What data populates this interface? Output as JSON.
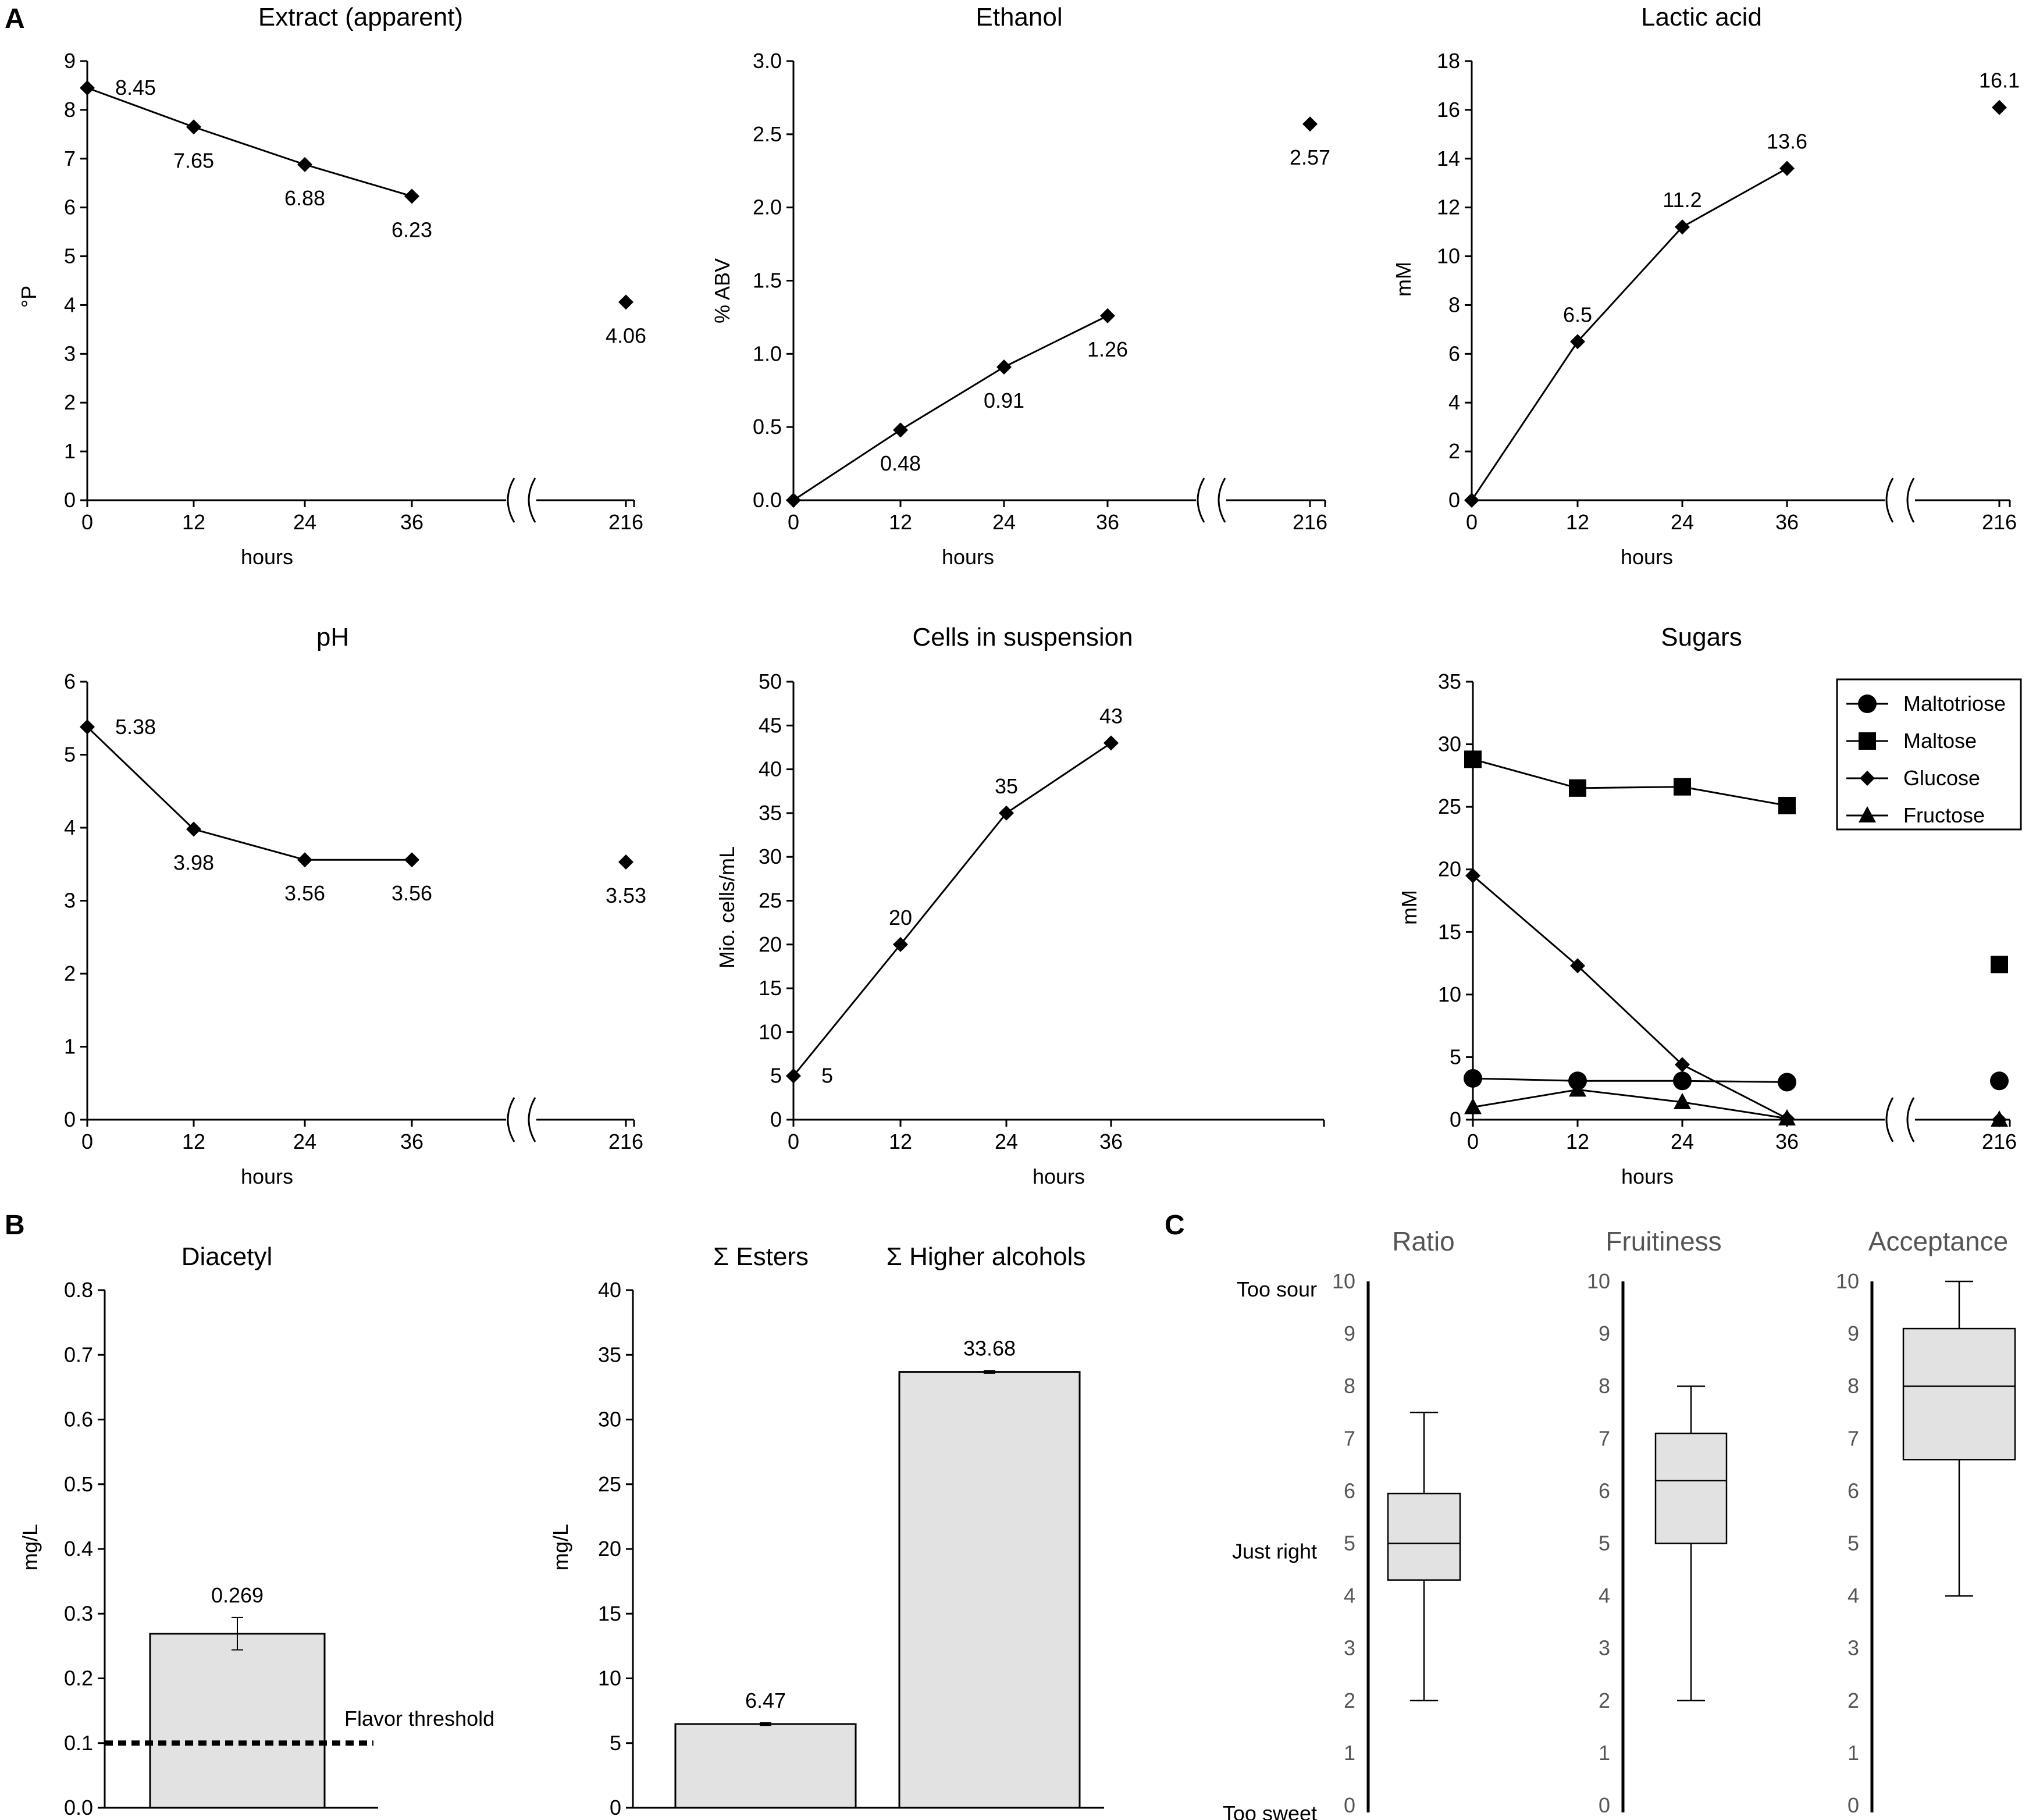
{
  "panel_labels": [
    "A",
    "B",
    "C"
  ],
  "chart_data": [
    {
      "id": "extract",
      "type": "line",
      "title": "Extract (apparent)",
      "xlabel": "hours",
      "ylabel": "°P",
      "ylim": [
        0,
        9
      ],
      "yticks": [
        0,
        1,
        2,
        3,
        4,
        5,
        6,
        7,
        8,
        9
      ],
      "x_ticks": [
        "0",
        "12",
        "24",
        "36",
        "216"
      ],
      "axis_break": true,
      "series": [
        {
          "name": "Extract",
          "marker": "diamond",
          "x": [
            0,
            12,
            24,
            36,
            216
          ],
          "values": [
            8.45,
            7.65,
            6.88,
            6.23,
            4.06
          ],
          "labels": [
            "8.45",
            "7.65",
            "6.88",
            "6.23",
            "4.06"
          ],
          "label_pos": [
            "right",
            "below",
            "below",
            "below",
            "below"
          ]
        }
      ]
    },
    {
      "id": "ethanol",
      "type": "line",
      "title": "Ethanol",
      "xlabel": "hours",
      "ylabel": "% ABV",
      "ylim": [
        0,
        3.0
      ],
      "yticks": [
        "0.0",
        "0.5",
        "1.0",
        "1.5",
        "2.0",
        "2.5",
        "3.0"
      ],
      "x_ticks": [
        "0",
        "12",
        "24",
        "36",
        "216"
      ],
      "axis_break": true,
      "series": [
        {
          "name": "Ethanol",
          "marker": "diamond",
          "x": [
            0,
            12,
            24,
            36,
            216
          ],
          "values": [
            0,
            0.48,
            0.91,
            1.26,
            2.57
          ],
          "labels": [
            "",
            "0.48",
            "0.91",
            "1.26",
            "2.57"
          ],
          "label_pos": [
            "none",
            "below",
            "below",
            "below",
            "below"
          ]
        }
      ]
    },
    {
      "id": "lactic",
      "type": "line",
      "title": "Lactic acid",
      "xlabel": "hours",
      "ylabel": "mM",
      "ylim": [
        0,
        18
      ],
      "yticks": [
        "0",
        "2",
        "4",
        "6",
        "8",
        "10",
        "12",
        "14",
        "16",
        "18"
      ],
      "x_ticks": [
        "0",
        "12",
        "24",
        "36",
        "216"
      ],
      "axis_break": true,
      "series": [
        {
          "name": "Lactic acid",
          "marker": "diamond",
          "x": [
            0,
            12,
            24,
            36,
            216
          ],
          "values": [
            0,
            6.5,
            11.2,
            13.6,
            16.1
          ],
          "labels": [
            "",
            "6.5",
            "11.2",
            "13.6",
            "16.1"
          ],
          "label_pos": [
            "none",
            "above",
            "above",
            "above",
            "above"
          ]
        }
      ]
    },
    {
      "id": "ph",
      "type": "line",
      "title": "pH",
      "xlabel": "hours",
      "ylabel": "",
      "ylim": [
        0,
        6
      ],
      "yticks": [
        "0",
        "1",
        "2",
        "3",
        "4",
        "5",
        "6"
      ],
      "x_ticks": [
        "0",
        "12",
        "24",
        "36",
        "216"
      ],
      "axis_break": true,
      "series": [
        {
          "name": "pH",
          "marker": "diamond",
          "x": [
            0,
            12,
            24,
            36,
            216
          ],
          "values": [
            5.38,
            3.98,
            3.56,
            3.56,
            3.53
          ],
          "labels": [
            "5.38",
            "3.98",
            "3.56",
            "3.56",
            "3.53"
          ],
          "label_pos": [
            "right",
            "below",
            "below",
            "below",
            "below"
          ]
        }
      ]
    },
    {
      "id": "cells",
      "type": "line",
      "title": "Cells in suspension",
      "xlabel": "hours",
      "ylabel": "Mio. cells/mL",
      "ylim": [
        0,
        50
      ],
      "yticks": [
        "0",
        "5",
        "10",
        "15",
        "20",
        "25",
        "30",
        "35",
        "40",
        "45",
        "50"
      ],
      "x_ticks": [
        "0",
        "12",
        "24",
        "36"
      ],
      "axis_break": false,
      "series": [
        {
          "name": "Cells",
          "marker": "diamond",
          "x": [
            0,
            12,
            24,
            36
          ],
          "values": [
            5,
            20,
            35,
            43
          ],
          "labels": [
            "5",
            "20",
            "35",
            "43"
          ],
          "label_pos": [
            "right",
            "above",
            "above",
            "above"
          ]
        }
      ]
    },
    {
      "id": "sugars",
      "type": "line",
      "title": "Sugars",
      "xlabel": "hours",
      "ylabel": "mM",
      "ylim": [
        0,
        35
      ],
      "yticks": [
        "0",
        "5",
        "10",
        "15",
        "20",
        "25",
        "30",
        "35"
      ],
      "x_ticks": [
        "0",
        "12",
        "24",
        "36",
        "216"
      ],
      "axis_break": true,
      "legend": "top-right",
      "series": [
        {
          "name": "Maltotriose",
          "marker": "circle",
          "x": [
            0,
            12,
            24,
            36,
            216
          ],
          "values": [
            3.3,
            3.1,
            3.1,
            3.0,
            3.1
          ]
        },
        {
          "name": "Maltose",
          "marker": "square",
          "x": [
            0,
            12,
            24,
            36,
            216
          ],
          "values": [
            28.8,
            26.5,
            26.6,
            25.1,
            12.4
          ]
        },
        {
          "name": "Glucose",
          "marker": "diamond",
          "x": [
            0,
            12,
            24,
            36,
            216
          ],
          "values": [
            19.5,
            12.3,
            4.4,
            0.1,
            0.0
          ]
        },
        {
          "name": "Fructose",
          "marker": "triangle",
          "x": [
            0,
            12,
            24,
            36,
            216
          ],
          "values": [
            1.0,
            2.4,
            1.4,
            0.1,
            0.0
          ]
        }
      ]
    },
    {
      "id": "diacetyl",
      "type": "bar",
      "title": "Diacetyl",
      "ylabel": "mg/L",
      "ylim": [
        0,
        0.8
      ],
      "yticks": [
        "0.0",
        "0.1",
        "0.2",
        "0.3",
        "0.4",
        "0.5",
        "0.6",
        "0.7",
        "0.8"
      ],
      "categories": [
        "Diacetyl"
      ],
      "values": [
        0.269
      ],
      "errors": [
        0.025
      ],
      "labels": [
        "0.269"
      ],
      "threshold": 0.1,
      "threshold_label": "Flavor threshold"
    },
    {
      "id": "esters",
      "type": "bar",
      "title": "",
      "ylabel": "mg/L",
      "ylim": [
        0,
        40
      ],
      "yticks": [
        "0",
        "5",
        "10",
        "15",
        "20",
        "25",
        "30",
        "35",
        "40"
      ],
      "categories": [
        "Σ Esters",
        "Σ Higher alcohols"
      ],
      "values": [
        6.47,
        33.68
      ],
      "errors": [
        0.1,
        0.1
      ],
      "labels": [
        "6.47",
        "33.68"
      ]
    },
    {
      "id": "sensory",
      "type": "boxplot",
      "ylim": [
        0,
        10
      ],
      "yticks": [
        "0",
        "1",
        "2",
        "3",
        "4",
        "5",
        "6",
        "7",
        "8",
        "9",
        "10"
      ],
      "scale_labels": [
        {
          "text": "Too sour",
          "value": 10
        },
        {
          "text": "Just right",
          "value": 5
        },
        {
          "text": "Too sweet",
          "value": 0
        }
      ],
      "boxes": [
        {
          "name": "Ratio",
          "min": 2,
          "q1": 4.3,
          "median": 5.0,
          "q3": 5.95,
          "max": 7.5
        },
        {
          "name": "Fruitiness",
          "min": 2,
          "q1": 5.0,
          "median": 6.2,
          "q3": 7.1,
          "max": 8.0
        },
        {
          "name": "Acceptance",
          "min": 4,
          "q1": 6.6,
          "median": 8.0,
          "q3": 9.1,
          "max": 10
        }
      ]
    }
  ]
}
